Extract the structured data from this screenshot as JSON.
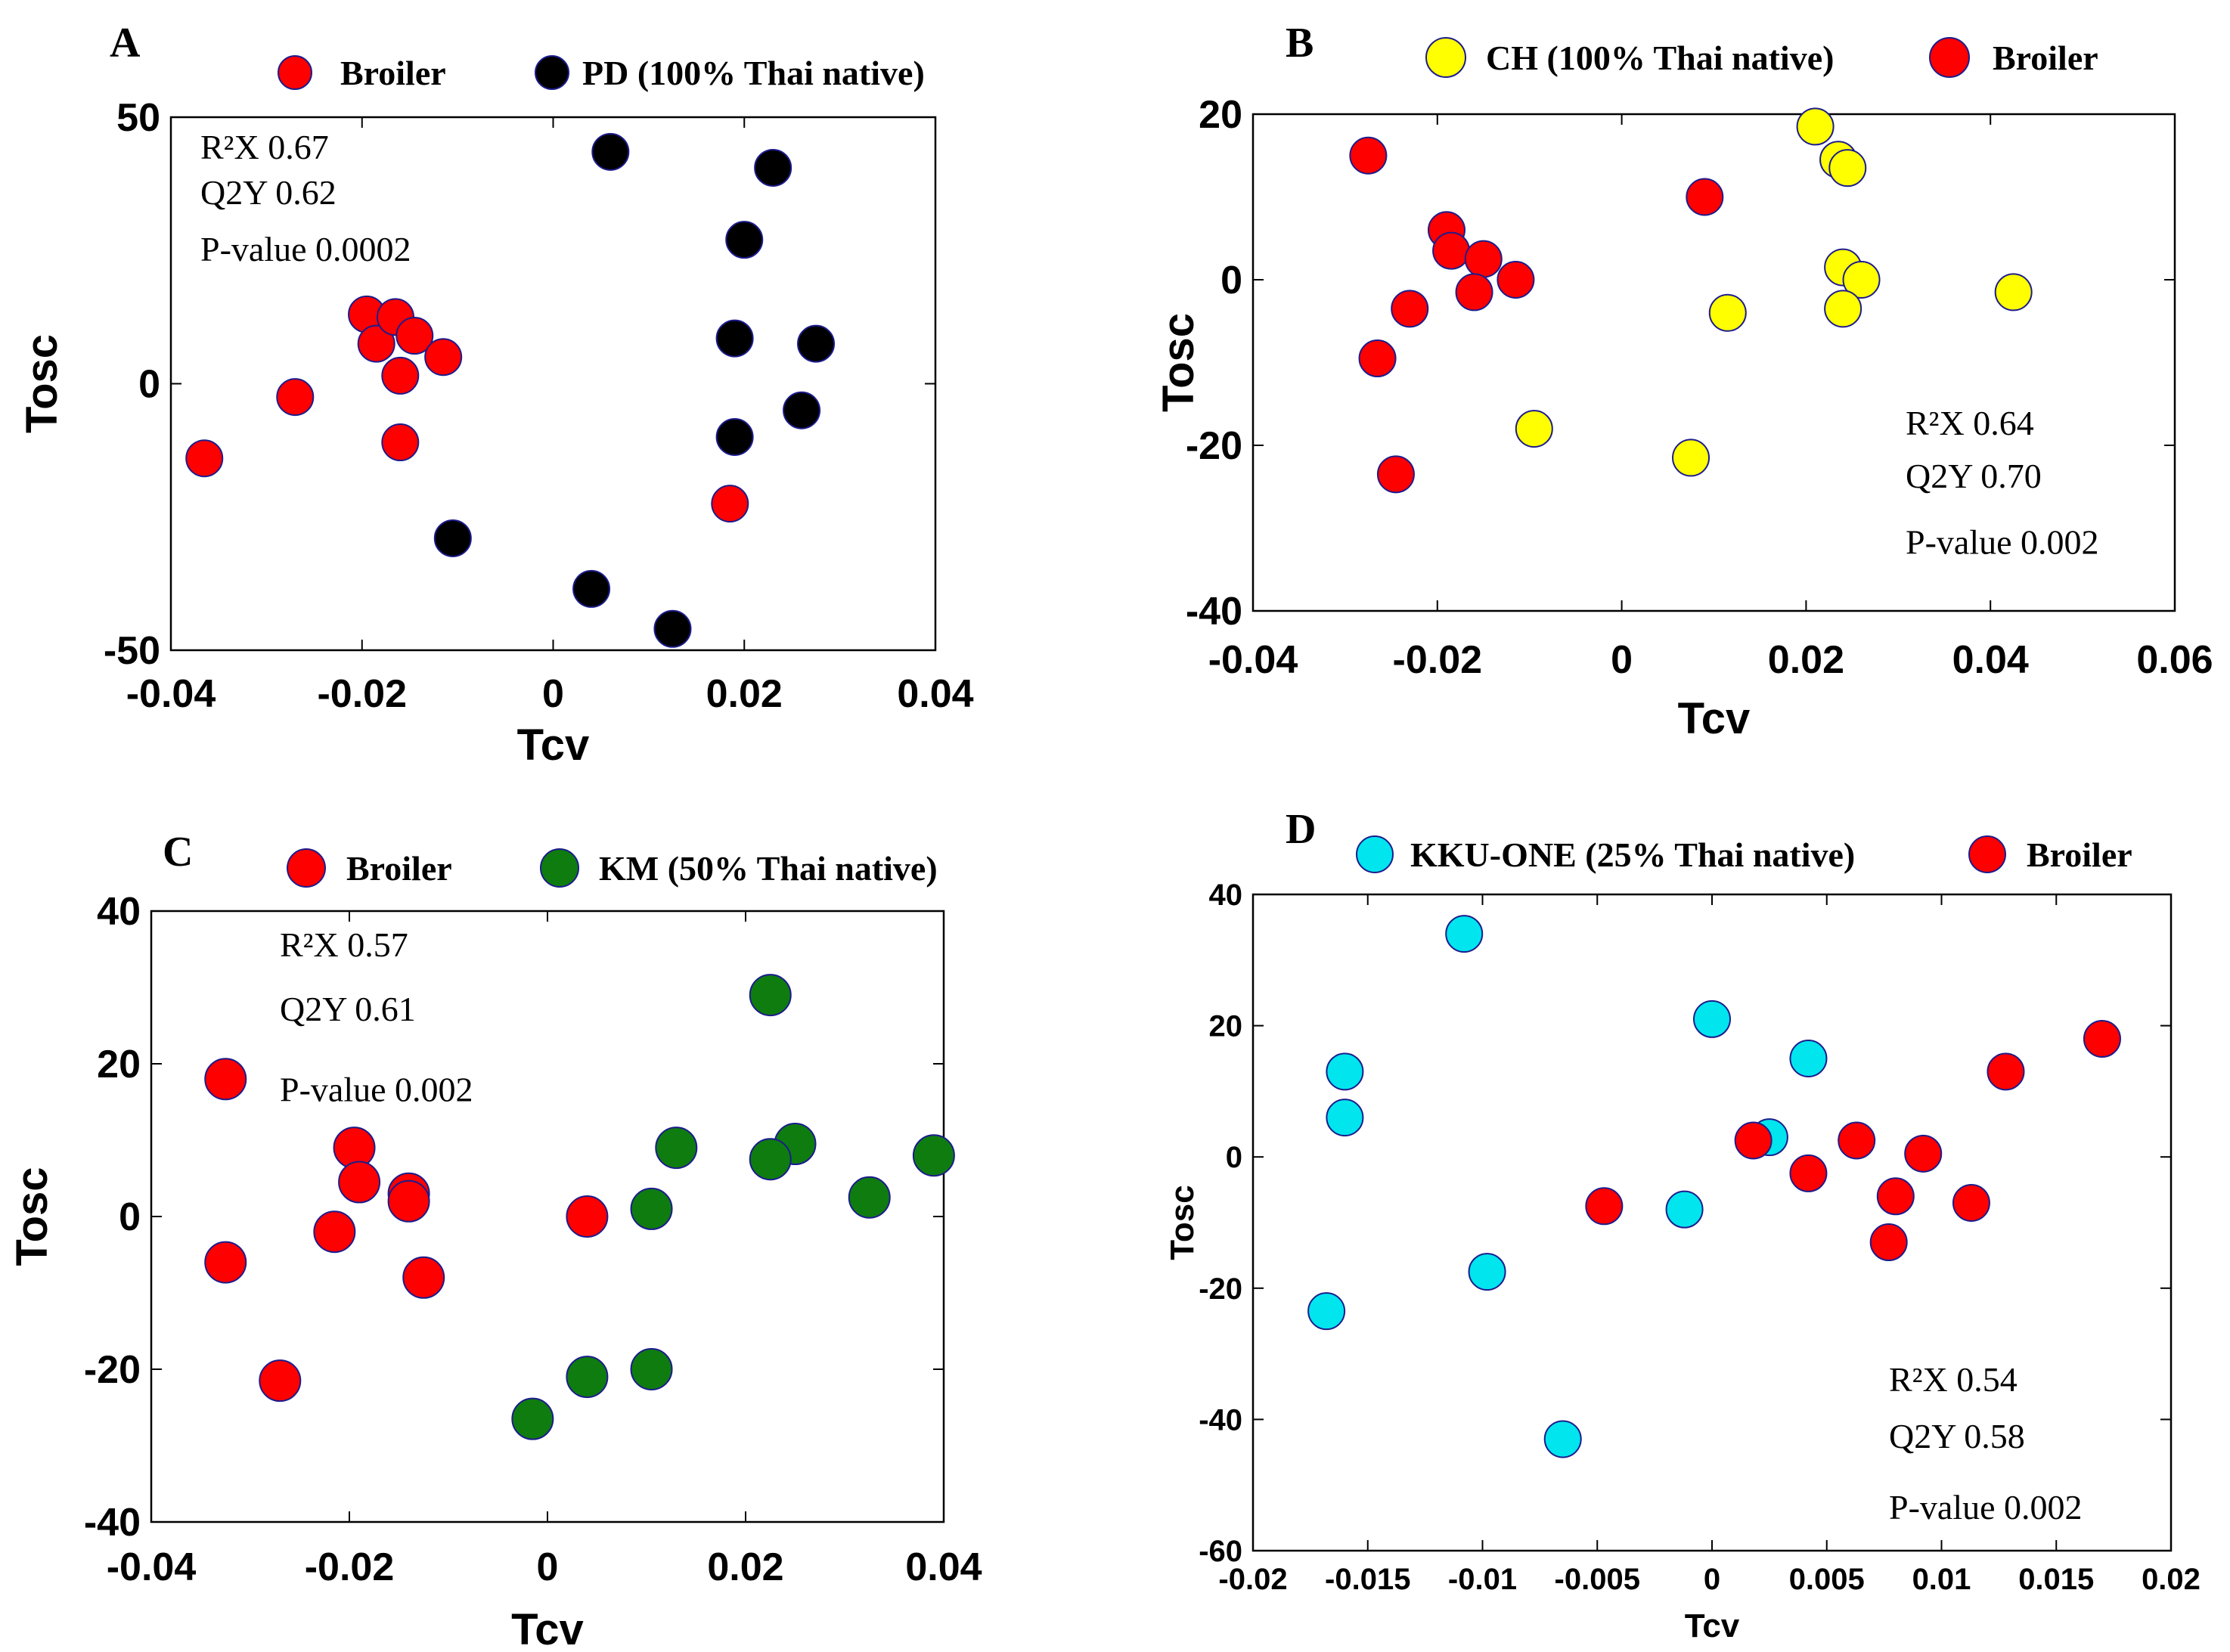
{
  "chart_data": [
    {
      "panel": "A",
      "type": "scatter",
      "xlabel": "Tcv",
      "ylabel": "Tosc",
      "xlim": [
        -0.04,
        0.04
      ],
      "ylim": [
        -50,
        50
      ],
      "xticks": [
        "-0.04",
        "-0.02",
        "0",
        "0.02",
        "0.04"
      ],
      "yticks": [
        "50",
        "0",
        "-50"
      ],
      "stats": [
        "R²X 0.67",
        "Q2Y 0.62",
        "P-value 0.0002"
      ],
      "series": [
        {
          "name": "Broiler",
          "color": "#ff0000",
          "points": [
            [
              -0.0365,
              -14
            ],
            [
              -0.027,
              -2.5
            ],
            [
              -0.0195,
              13
            ],
            [
              -0.0185,
              7.5
            ],
            [
              -0.0165,
              12.5
            ],
            [
              -0.0145,
              9
            ],
            [
              -0.016,
              1.5
            ],
            [
              -0.0115,
              5
            ],
            [
              -0.016,
              -11
            ],
            [
              0.0185,
              -22.5
            ]
          ]
        },
        {
          "name": "PD (100% Thai native)",
          "color": "#000000",
          "points": [
            [
              0.006,
              43.5
            ],
            [
              0.023,
              40.5
            ],
            [
              0.02,
              27
            ],
            [
              0.019,
              8.5
            ],
            [
              0.0275,
              7.5
            ],
            [
              0.026,
              -5
            ],
            [
              0.019,
              -10
            ],
            [
              -0.0105,
              -29
            ],
            [
              0.004,
              -38.5
            ],
            [
              0.0125,
              -46
            ]
          ]
        }
      ]
    },
    {
      "panel": "B",
      "type": "scatter",
      "xlabel": "Tcv",
      "ylabel": "Tosc",
      "xlim": [
        -0.04,
        0.06
      ],
      "ylim": [
        -40,
        20
      ],
      "xticks": [
        "-0.04",
        "-0.02",
        "0",
        "0.02",
        "0.04",
        "0.06"
      ],
      "yticks": [
        "20",
        "0",
        "-20",
        "-40"
      ],
      "stats": [
        "R²X 0.64",
        "Q2Y 0.70",
        "P-value 0.002"
      ],
      "series": [
        {
          "name": "CH (100% Thai native)",
          "color": "#ffff00",
          "points": [
            [
              0.021,
              18.5
            ],
            [
              0.0235,
              14.5
            ],
            [
              0.0245,
              13.5
            ],
            [
              0.024,
              1.5
            ],
            [
              0.026,
              0
            ],
            [
              0.024,
              -3.5
            ],
            [
              0.0115,
              -4
            ],
            [
              0.0425,
              -1.5
            ],
            [
              -0.0095,
              -18
            ],
            [
              0.0075,
              -21.5
            ]
          ]
        },
        {
          "name": "Broiler",
          "color": "#ff0000",
          "points": [
            [
              -0.0275,
              15
            ],
            [
              0.009,
              10
            ],
            [
              -0.019,
              6
            ],
            [
              -0.0185,
              3.5
            ],
            [
              -0.015,
              2.5
            ],
            [
              -0.016,
              -1.5
            ],
            [
              -0.0115,
              0
            ],
            [
              -0.023,
              -3.5
            ],
            [
              -0.0265,
              -9.5
            ],
            [
              -0.0245,
              -23.5
            ]
          ]
        }
      ]
    },
    {
      "panel": "C",
      "type": "scatter",
      "xlabel": "Tcv",
      "ylabel": "Tosc",
      "xlim": [
        -0.04,
        0.04
      ],
      "ylim": [
        -40,
        40
      ],
      "xticks": [
        "-0.04",
        "-0.02",
        "0",
        "0.02",
        "0.04"
      ],
      "yticks": [
        "40",
        "20",
        "0",
        "-20",
        "-40"
      ],
      "stats": [
        "R²X 0.57",
        "Q2Y 0.61",
        "P-value 0.002"
      ],
      "series": [
        {
          "name": "Broiler",
          "color": "#ff0000",
          "points": [
            [
              -0.0325,
              18
            ],
            [
              -0.0195,
              9
            ],
            [
              -0.019,
              4.5
            ],
            [
              -0.014,
              3
            ],
            [
              -0.014,
              2
            ],
            [
              -0.0215,
              -2
            ],
            [
              -0.0325,
              -6
            ],
            [
              -0.0125,
              -8
            ],
            [
              -0.027,
              -21.5
            ],
            [
              0.004,
              0
            ]
          ]
        },
        {
          "name": "KM (50% Thai native)",
          "color": "#0f7c0f",
          "points": [
            [
              0.0225,
              29
            ],
            [
              0.013,
              9
            ],
            [
              0.025,
              9.5
            ],
            [
              0.0225,
              7.5
            ],
            [
              0.039,
              8
            ],
            [
              0.0325,
              2.5
            ],
            [
              0.0105,
              1
            ],
            [
              0.0105,
              -20
            ],
            [
              0.004,
              -21
            ],
            [
              -0.0015,
              -26.5
            ]
          ]
        }
      ]
    },
    {
      "panel": "D",
      "type": "scatter",
      "xlabel": "Tcv",
      "ylabel": "Tosc",
      "xlim": [
        -0.02,
        0.02
      ],
      "ylim": [
        -60,
        40
      ],
      "xticks": [
        "-0.02",
        "-0.015",
        "-0.01",
        "-0.005",
        "0",
        "0.005",
        "0.01",
        "0.015",
        "0.02"
      ],
      "yticks": [
        "40",
        "20",
        "0",
        "-20",
        "-40",
        "-60"
      ],
      "stats": [
        "R²X 0.54",
        "Q2Y 0.58",
        "P-value 0.002"
      ],
      "series": [
        {
          "name": "KKU-ONE (25% Thai native)",
          "color": "#00e5ee",
          "points": [
            [
              -0.0108,
              34
            ],
            [
              -0.016,
              13
            ],
            [
              -0.016,
              6
            ],
            [
              0,
              21
            ],
            [
              0.0042,
              15
            ],
            [
              0.0025,
              3
            ],
            [
              -0.0012,
              -8
            ],
            [
              -0.0098,
              -17.5
            ],
            [
              -0.0168,
              -23.5
            ],
            [
              -0.0065,
              -43
            ]
          ]
        },
        {
          "name": "Broiler",
          "color": "#ff0000",
          "points": [
            [
              0.017,
              18
            ],
            [
              0.0128,
              13
            ],
            [
              0.0018,
              2.5
            ],
            [
              0.0063,
              2.5
            ],
            [
              0.0092,
              0.5
            ],
            [
              0.0042,
              -2.5
            ],
            [
              0.008,
              -6
            ],
            [
              0.0113,
              -7
            ],
            [
              0.0077,
              -13
            ],
            [
              -0.0047,
              -7.5
            ]
          ]
        }
      ]
    }
  ]
}
